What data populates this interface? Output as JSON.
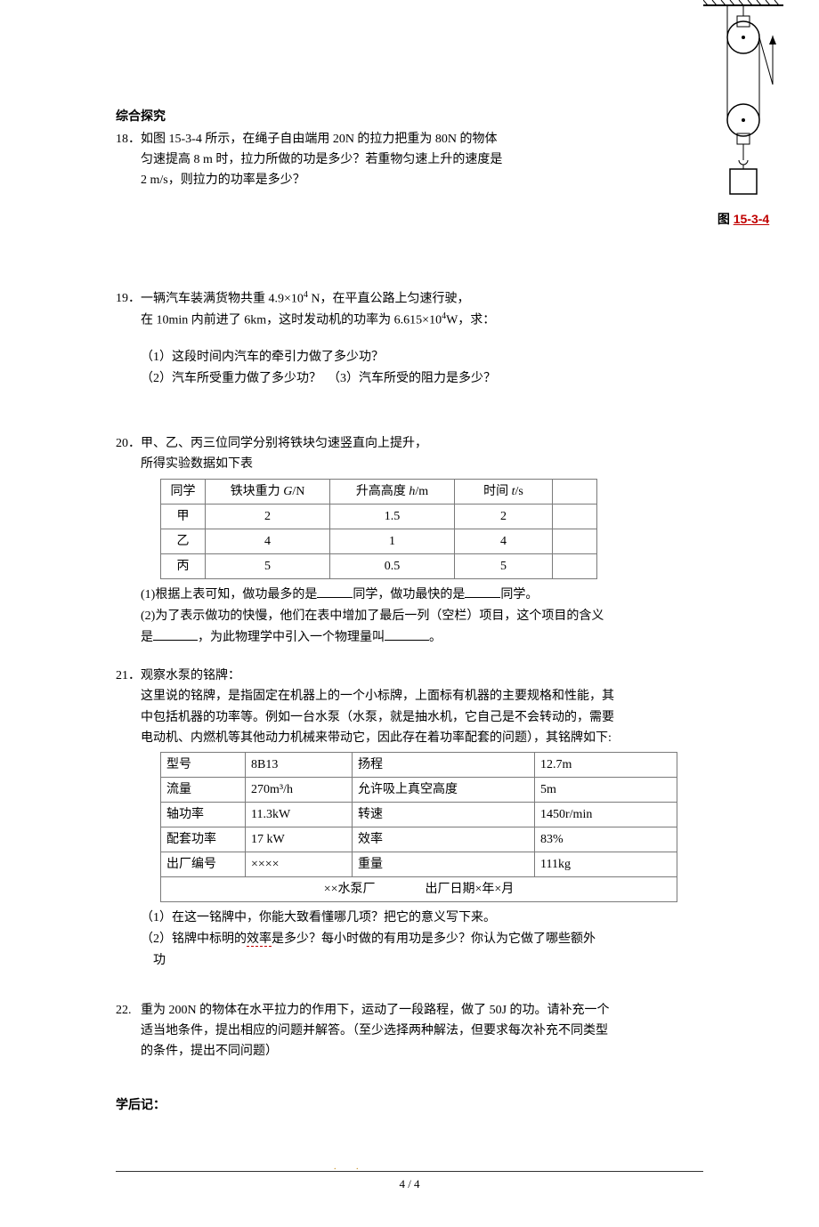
{
  "section_heading": "综合探究",
  "p18": {
    "no": "18．",
    "text_l1": "如图 15-3-4 所示，在绳子自由端用 20N 的拉力把重为 80N 的物体",
    "text_l2": "匀速提高 8 m 时，拉力所做的功是多少？若重物匀速上升的速度是",
    "text_l3": "2 m/s，则拉力的功率是多少？"
  },
  "figure": {
    "caption_prefix": "图 ",
    "caption_num": "15-3-4"
  },
  "p19": {
    "no": "19．",
    "text_l1_a": "一辆汽车装满货物共重 4.9×10",
    "text_l1_sup": "4",
    "text_l1_b": " N，在平直公路上匀速行驶，",
    "text_l2_a": "在 10min 内前进了 6km，这时发动机的功率为 6.615×10",
    "text_l2_sup": "4",
    "text_l2_b": "W，求：",
    "q1": "（1）这段时间内汽车的牵引力做了多少功？",
    "q2": "（2）汽车所受重力做了多少功？　（3）汽车所受的阻力是多少？"
  },
  "p20": {
    "no": "20．",
    "line1": "甲、乙、丙三位同学分别将铁块匀速竖直向上提升，",
    "line2": "所得实验数据如下表",
    "table": {
      "headers": [
        "同学",
        "铁块重力 G/N",
        "升高高度 h/m",
        "时间 t/s",
        ""
      ],
      "header_italic": [
        false,
        true,
        true,
        true,
        false
      ],
      "rows": [
        [
          "甲",
          "2",
          "1.5",
          "2",
          ""
        ],
        [
          "乙",
          "4",
          "1",
          "4",
          ""
        ],
        [
          "丙",
          "5",
          "0.5",
          "5",
          ""
        ]
      ]
    },
    "q1_a": "(1)根据上表可知，做功最多的是",
    "q1_b": "同学，做功最快的是",
    "q1_c": "同学。",
    "q2_a": "(2)为了表示做功的快慢，他们在表中增加了最后一列（空栏）项目，这个项目的含义",
    "q2_b": "是",
    "q2_c": "，为此物理学中引入一个物理量叫",
    "q2_d": "。"
  },
  "p21": {
    "no": "21．",
    "line1": "观察水泵的铭牌：",
    "line2": "这里说的铭牌，是指固定在机器上的一个小标牌，上面标有机器的主要规格和性能，其",
    "line3": "中包括机器的功率等。例如一台水泵（水泵，就是抽水机，它自己是不会转动的，需要",
    "line4": "电动机、内燃机等其他动力机械来带动它，因此存在着功率配套的问题），其铭牌如下:",
    "table": {
      "rows": [
        [
          "型号",
          "8B13",
          "扬程",
          "12.7m"
        ],
        [
          "流量",
          "270m³/h",
          "允许吸上真空高度",
          "5m"
        ],
        [
          "轴功率",
          "11.3kW",
          "转速",
          "1450r/min"
        ],
        [
          "配套功率",
          "17 kW",
          "效率",
          "83%"
        ],
        [
          "出厂编号",
          "××××",
          "重量",
          "111kg"
        ]
      ],
      "footer": "××水泵厂　　　　出厂日期×年×月"
    },
    "q1": "（1）在这一铭牌中，你能大致看懂哪几项？把它的意义写下来。",
    "q2_a": "（2）铭牌中标明的",
    "q2_dot": "效率",
    "q2_b": "是多少？每小时做的有用功是多少？你认为它做了哪些额外",
    "q2_c": "功"
  },
  "p22": {
    "no": "22.",
    "line1": " 重为 200N 的物体在水平拉力的作用下，运动了一段路程，做了 50J 的功。请补充一个",
    "line2": "适当地条件，提出相应的问题并解答。（至少选择两种解法，但要求每次补充不同类型",
    "line3": "的条件，提出不同问题）"
  },
  "postscript": "学后记：",
  "page_number": "4 / 4"
}
